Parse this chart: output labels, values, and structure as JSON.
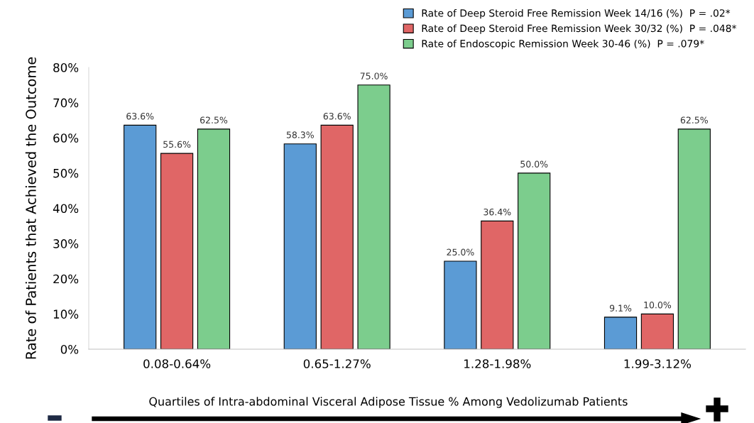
{
  "chart_data": {
    "type": "bar",
    "categories": [
      "0.08-0.64%",
      "0.65-1.27%",
      "1.28-1.98%",
      "1.99-3.12%"
    ],
    "series": [
      {
        "name": "Rate of Deep Steroid Free Remission Week 14/16 (%)  P = .02*",
        "color": "#5b9bd5",
        "values": [
          63.6,
          58.3,
          25.0,
          9.1
        ],
        "value_labels": [
          "63.6%",
          "58.3%",
          "25.0%",
          "9.1%"
        ]
      },
      {
        "name": "Rate of Deep Steroid Free Remission Week 30/32 (%)  P = .048*",
        "color": "#e06666",
        "values": [
          55.6,
          63.6,
          36.4,
          10.0
        ],
        "value_labels": [
          "55.6%",
          "63.6%",
          "36.4%",
          "10.0%"
        ]
      },
      {
        "name": "Rate of Endoscopic Remission Week 30-46 (%)  P = .079*",
        "color": "#7ccd8d",
        "values": [
          62.5,
          75.0,
          50.0,
          62.5
        ],
        "value_labels": [
          "62.5%",
          "75.0%",
          "50.0%",
          "62.5%"
        ]
      }
    ],
    "xlabel": "Quartiles of Intra-abdominal Visceral Adipose Tissue % Among Vedolizumab Patients",
    "ylabel": "Rate of Patients that Achieved the Outcome",
    "ylim": [
      0,
      80
    ],
    "yticks": [
      {
        "value": 0,
        "label": "0%"
      },
      {
        "value": 10,
        "label": "10%"
      },
      {
        "value": 20,
        "label": "20%"
      },
      {
        "value": 30,
        "label": "30%"
      },
      {
        "value": 40,
        "label": "40%"
      },
      {
        "value": 50,
        "label": "50%"
      },
      {
        "value": 60,
        "label": "60%"
      },
      {
        "value": 70,
        "label": "70%"
      },
      {
        "value": 80,
        "label": "80%"
      }
    ],
    "grid": false,
    "legend": "top right"
  }
}
